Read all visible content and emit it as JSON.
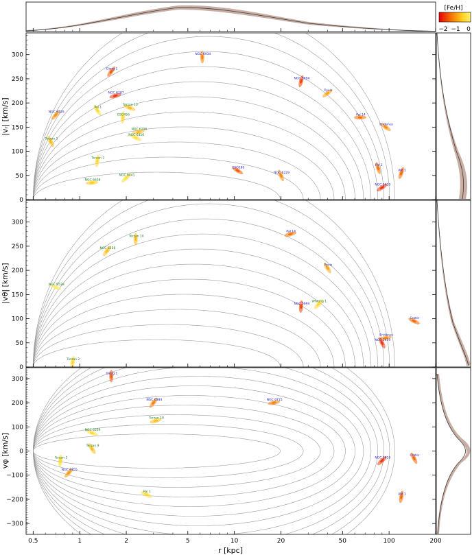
{
  "chart_data": {
    "type": "scatter",
    "xscale": "log",
    "xlim": [
      0.45,
      200
    ],
    "xlabel": "r [kpc]",
    "xticks": [
      0.5,
      1,
      2,
      5,
      10,
      20,
      50,
      100,
      200
    ],
    "xtick_labels": [
      "0.5",
      "1",
      "2",
      "5",
      "10",
      "20",
      "50",
      "100",
      "200"
    ],
    "colorbar": {
      "label": "[Fe/H]",
      "ticks": [
        "−2",
        "−1",
        "0"
      ],
      "colors": [
        "#e8000b",
        "#f46a00",
        "#ffd21e",
        "#ffef70"
      ]
    },
    "panels": [
      {
        "id": "vr",
        "ylabel": "|vᵣ| [km/s]",
        "ylim": [
          0,
          345
        ],
        "yticks": [
          0,
          50,
          100,
          150,
          200,
          250,
          300
        ],
        "clusters": [
          {
            "name": "NGC 6934",
            "r": 6.2,
            "v": 295,
            "feh": -1.5
          },
          {
            "name": "Djorg 1",
            "r": 1.6,
            "v": 265,
            "feh": -1.8
          },
          {
            "name": "NGC 6287",
            "r": 1.7,
            "v": 215,
            "feh": -2.1
          },
          {
            "name": "Terzan 10",
            "r": 2.1,
            "v": 190,
            "feh": -1.0
          },
          {
            "name": "Pal 1",
            "r": 1.3,
            "v": 185,
            "feh": -0.6
          },
          {
            "name": "ESO456",
            "r": 1.9,
            "v": 170,
            "feh": -0.6
          },
          {
            "name": "NGC 6325",
            "r": 0.7,
            "v": 175,
            "feh": -1.3
          },
          {
            "name": "NGC 6256",
            "r": 2.4,
            "v": 140,
            "feh": -1.0
          },
          {
            "name": "NGC 6316",
            "r": 2.3,
            "v": 128,
            "feh": -0.5
          },
          {
            "name": "Terzan 1",
            "r": 0.65,
            "v": 120,
            "feh": -1.0
          },
          {
            "name": "Terzan 2",
            "r": 1.3,
            "v": 80,
            "feh": -0.7
          },
          {
            "name": "NGC 6441",
            "r": 2.0,
            "v": 45,
            "feh": -0.5
          },
          {
            "name": "NGC 6638",
            "r": 1.2,
            "v": 35,
            "feh": -0.9
          },
          {
            "name": "ESO280",
            "r": 10.5,
            "v": 60,
            "feh": -1.8
          },
          {
            "name": "NGC 6229",
            "r": 20.0,
            "v": 50,
            "feh": -1.4
          },
          {
            "name": "NGC 5694",
            "r": 27.0,
            "v": 245,
            "feh": -2.0
          },
          {
            "name": "Pyxis",
            "r": 40.0,
            "v": 220,
            "feh": -1.2
          },
          {
            "name": "Pal 14",
            "r": 65.0,
            "v": 170,
            "feh": -1.6
          },
          {
            "name": "Eridanus",
            "r": 95.0,
            "v": 150,
            "feh": -1.4
          },
          {
            "name": "Pal 3",
            "r": 85.0,
            "v": 65,
            "feh": -1.6
          },
          {
            "name": "AM 1",
            "r": 120.0,
            "v": 55,
            "feh": -1.7
          },
          {
            "name": "NGC 2419",
            "r": 90.0,
            "v": 25,
            "feh": -2.1
          }
        ]
      },
      {
        "id": "vtheta",
        "ylabel": "|vθ| [km/s]",
        "ylim": [
          0,
          345
        ],
        "yticks": [
          0,
          50,
          100,
          150,
          200,
          250,
          300
        ],
        "clusters": [
          {
            "name": "Terzan 10",
            "r": 2.3,
            "v": 265,
            "feh": -1.0
          },
          {
            "name": "NGC 6256",
            "r": 1.5,
            "v": 240,
            "feh": -1.0
          },
          {
            "name": "Pal 14",
            "r": 23.0,
            "v": 275,
            "feh": -1.6
          },
          {
            "name": "NGC 6528",
            "r": 0.7,
            "v": 165,
            "feh": -0.1
          },
          {
            "name": "Pyxis",
            "r": 40.0,
            "v": 205,
            "feh": -1.2
          },
          {
            "name": "NGC 5694",
            "r": 27.0,
            "v": 125,
            "feh": -2.0
          },
          {
            "name": "Whiting 1",
            "r": 35.0,
            "v": 130,
            "feh": -0.7
          },
          {
            "name": "Eridanus",
            "r": 95.0,
            "v": 60,
            "feh": -1.4
          },
          {
            "name": "Crater",
            "r": 145.0,
            "v": 95,
            "feh": -1.7
          },
          {
            "name": "NGC 2419",
            "r": 90.0,
            "v": 50,
            "feh": -2.1
          },
          {
            "name": "Terzan 2",
            "r": 0.9,
            "v": 10,
            "feh": -0.7
          }
        ]
      },
      {
        "id": "vphi",
        "ylabel": "vφ [km/s]",
        "ylim": [
          -345,
          345
        ],
        "yticks": [
          -300,
          -200,
          -100,
          0,
          100,
          200,
          300
        ],
        "clusters": [
          {
            "name": "Djorg 1",
            "r": 1.6,
            "v": 310,
            "feh": -1.8
          },
          {
            "name": "NGC 6584",
            "r": 3.0,
            "v": 200,
            "feh": -1.5
          },
          {
            "name": "Terzan 10",
            "r": 3.1,
            "v": 125,
            "feh": -1.0
          },
          {
            "name": "NGC 6539",
            "r": 1.2,
            "v": 75,
            "feh": -0.6
          },
          {
            "name": "Terzan 9",
            "r": 1.2,
            "v": 10,
            "feh": -1.0
          },
          {
            "name": "Terzan 2",
            "r": 0.75,
            "v": -40,
            "feh": -0.7
          },
          {
            "name": "NGC 6355",
            "r": 0.85,
            "v": -90,
            "feh": -1.3
          },
          {
            "name": "NGC 6715",
            "r": 18.0,
            "v": 200,
            "feh": -1.5
          },
          {
            "name": "Pal 1",
            "r": 2.7,
            "v": -180,
            "feh": -0.6
          },
          {
            "name": "Crater",
            "r": 145.0,
            "v": -30,
            "feh": -1.7
          },
          {
            "name": "AM 1",
            "r": 120.0,
            "v": -190,
            "feh": -1.7
          },
          {
            "name": "NGC 2419",
            "r": 90.0,
            "v": -40,
            "feh": -2.1
          }
        ]
      }
    ]
  }
}
